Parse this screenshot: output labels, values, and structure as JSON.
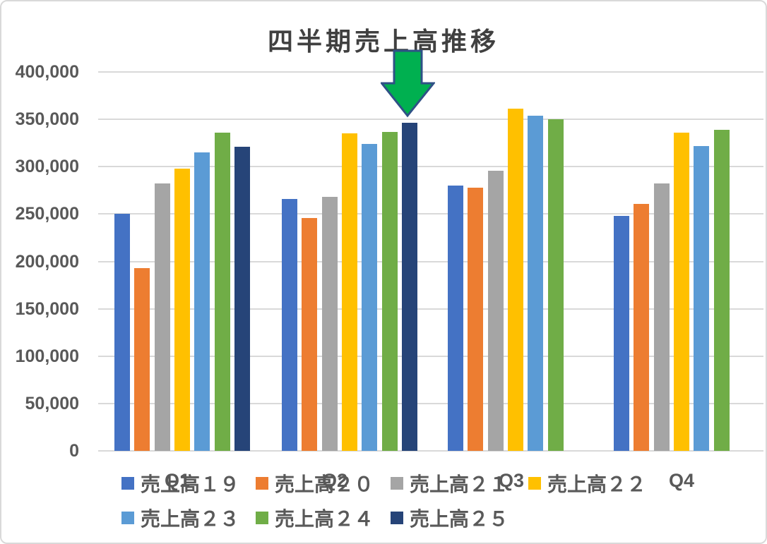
{
  "title": "四半期売上高推移",
  "chart_data": {
    "type": "bar",
    "title": "四半期売上高推移",
    "categories": [
      "Q1",
      "Q2",
      "Q3",
      "Q4"
    ],
    "series": [
      {
        "name": "売上高１９",
        "color": "#4472C4",
        "values": [
          250000,
          266000,
          280000,
          248000
        ]
      },
      {
        "name": "売上高２０",
        "color": "#ED7D31",
        "values": [
          193000,
          246000,
          278000,
          261000
        ]
      },
      {
        "name": "売上高２１",
        "color": "#A5A5A5",
        "values": [
          282000,
          268000,
          296000,
          282000
        ]
      },
      {
        "name": "売上高２２",
        "color": "#FFC000",
        "values": [
          298000,
          335000,
          361000,
          336000
        ]
      },
      {
        "name": "売上高２３",
        "color": "#5B9BD5",
        "values": [
          315000,
          324000,
          354000,
          322000
        ]
      },
      {
        "name": "売上高２４",
        "color": "#70AD47",
        "values": [
          336000,
          337000,
          350000,
          339000
        ]
      },
      {
        "name": "売上高２５",
        "color": "#264478",
        "values": [
          321000,
          346000,
          null,
          null
        ]
      }
    ],
    "ylim": [
      0,
      400000
    ],
    "ytick_step": 50000,
    "yticks": [
      {
        "value": 0,
        "label": "0"
      },
      {
        "value": 50000,
        "label": "50,000"
      },
      {
        "value": 100000,
        "label": "100,000"
      },
      {
        "value": 150000,
        "label": "150,000"
      },
      {
        "value": 200000,
        "label": "200,000"
      },
      {
        "value": 250000,
        "label": "250,000"
      },
      {
        "value": 300000,
        "label": "300,000"
      },
      {
        "value": 350000,
        "label": "350,000"
      },
      {
        "value": 400000,
        "label": "400,000"
      }
    ],
    "grid": true,
    "legend_position": "bottom",
    "annotation": {
      "shape": "down-arrow",
      "points_at": "Q2 売上高２５",
      "fill": "#00B050",
      "stroke": "#2F5186"
    }
  },
  "colors": {
    "title_text": "#404040",
    "axis_text": "#595959",
    "gridline": "#D9D9D9",
    "chart_border": "#D9D9D9",
    "background": "#FFFFFF"
  }
}
